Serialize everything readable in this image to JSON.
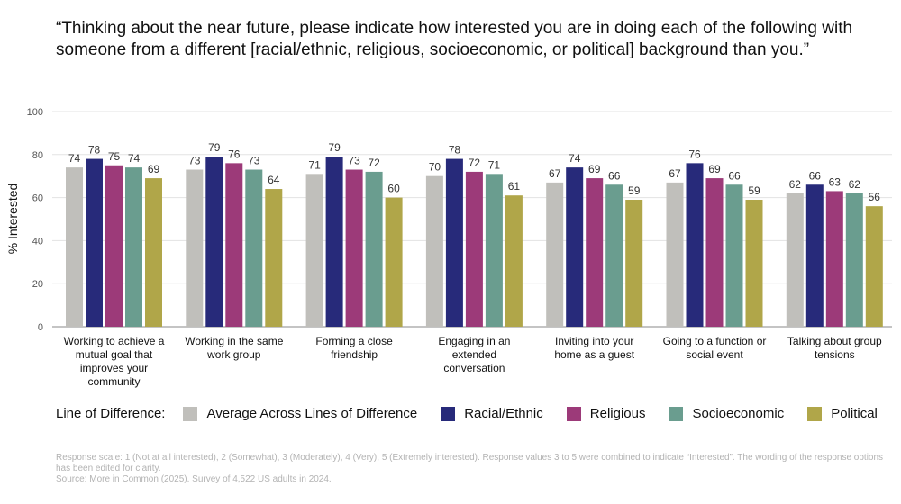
{
  "title": "“Thinking about the near future, please indicate how interested you are in doing each of the following with someone from a different [racial/ethnic, religious, socioeconomic, or political] background than you.”",
  "legend": {
    "title": "Line of Difference:"
  },
  "footnote": {
    "scale": "Response scale: 1 (Not at all interested), 2 (Somewhat), 3 (Moderately), 4 (Very), 5 (Extremely interested). Response values 3 to 5 were combined to indicate “Interested”.  The wording of the response options has been edited for clarity.",
    "source": "Source: More in Common (2025). Survey of 4,522 US adults in 2024."
  },
  "chart_data": {
    "type": "bar",
    "ylabel": "% Interested",
    "xlabel": "",
    "ylim": [
      0,
      100
    ],
    "yticks": [
      0,
      20,
      40,
      60,
      80,
      100
    ],
    "grid": true,
    "legend_position": "bottom",
    "categories": [
      [
        "Working to achieve a",
        "mutual goal that",
        "improves your",
        "community"
      ],
      [
        "Working in the same",
        "work group"
      ],
      [
        "Forming a close",
        "friendship"
      ],
      [
        "Engaging in an",
        "extended",
        "conversation"
      ],
      [
        "Inviting into your",
        "home as a guest"
      ],
      [
        "Going to a function or",
        "social event"
      ],
      [
        "Talking about group",
        "tensions"
      ]
    ],
    "series": [
      {
        "name": "Average Across Lines of Difference",
        "color": "#c0bfbb",
        "values": [
          74,
          73,
          71,
          70,
          67,
          67,
          62
        ]
      },
      {
        "name": "Racial/Ethnic",
        "color": "#272a7a",
        "values": [
          78,
          79,
          79,
          78,
          74,
          76,
          66
        ]
      },
      {
        "name": "Religious",
        "color": "#9c3a79",
        "values": [
          75,
          76,
          73,
          72,
          69,
          69,
          63
        ]
      },
      {
        "name": "Socioeconomic",
        "color": "#6a9d8f",
        "values": [
          74,
          73,
          72,
          71,
          66,
          66,
          62
        ]
      },
      {
        "name": "Political",
        "color": "#b0a649",
        "values": [
          69,
          64,
          60,
          61,
          59,
          59,
          56
        ]
      }
    ]
  }
}
